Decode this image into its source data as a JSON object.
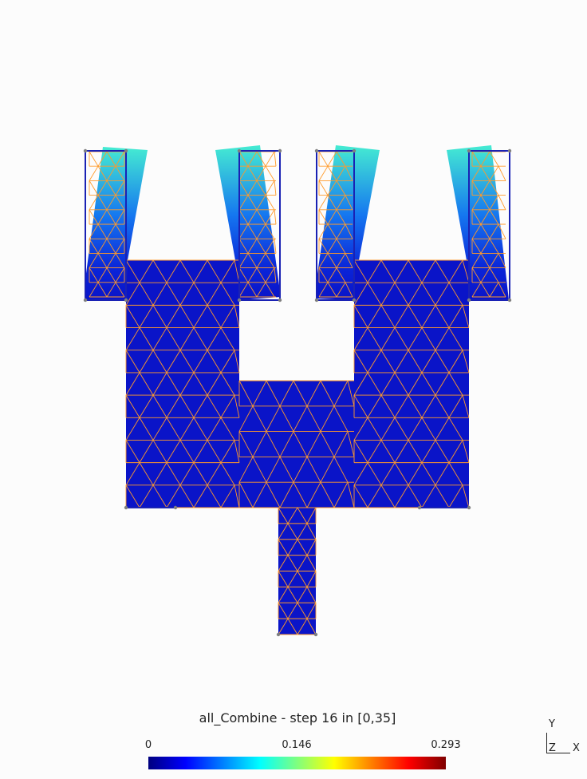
{
  "legend": {
    "title": "all_Combine - step 16 in [0,35]",
    "min_label": "0",
    "mid_label": "0.146",
    "max_label": "0.293",
    "colormap": [
      "#00007f",
      "#0000ff",
      "#007fff",
      "#00ffff",
      "#7fff7f",
      "#ffff00",
      "#ff7f00",
      "#ff0000",
      "#7f0000"
    ]
  },
  "axes": {
    "y": "Y",
    "z": "Z",
    "x": "X"
  },
  "colors": {
    "background": "#fcfcfc",
    "mesh_fill": "#0a14c8",
    "mesh_lines": "#ff9a2a",
    "undeformed_outline": "#1a22b4",
    "tip_color": "#3fe3c8"
  }
}
